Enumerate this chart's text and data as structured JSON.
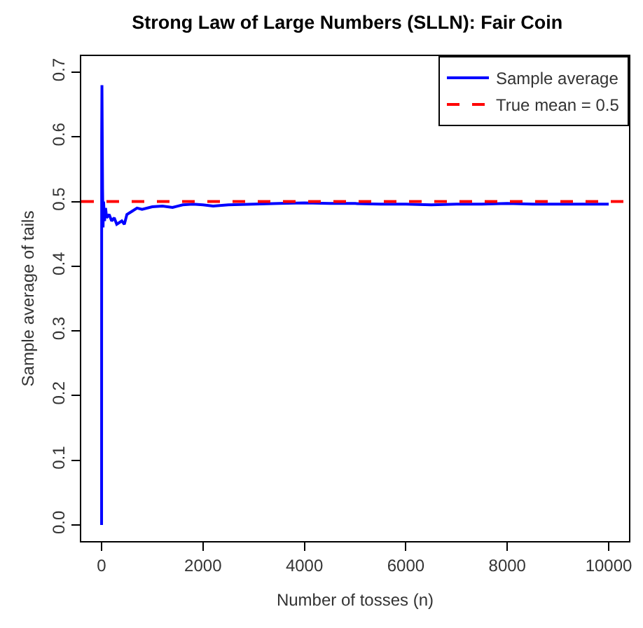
{
  "chart_data": {
    "type": "line",
    "title": "Strong Law of Large Numbers (SLLN): Fair Coin",
    "xlabel": "Number of tosses (n)",
    "ylabel": "Sample average of tails",
    "x": [
      1,
      3,
      8,
      20,
      30,
      40,
      60,
      80,
      100,
      150,
      200,
      250,
      300,
      400,
      450,
      500,
      600,
      700,
      800,
      1000,
      1200,
      1400,
      1600,
      1800,
      2000,
      2200,
      2500,
      3000,
      3500,
      4000,
      4500,
      5000,
      5500,
      6000,
      6500,
      7000,
      7500,
      8000,
      8500,
      9000,
      9500,
      10000
    ],
    "series": [
      {
        "name": "Sample average",
        "color": "#0000ff",
        "values": [
          0,
          0.6,
          0.68,
          0.52,
          0.46,
          0.5,
          0.47,
          0.49,
          0.475,
          0.48,
          0.47,
          0.475,
          0.465,
          0.47,
          0.465,
          0.48,
          0.485,
          0.49,
          0.488,
          0.492,
          0.493,
          0.491,
          0.495,
          0.496,
          0.495,
          0.493,
          0.495,
          0.496,
          0.497,
          0.498,
          0.497,
          0.497,
          0.496,
          0.496,
          0.495,
          0.496,
          0.496,
          0.497,
          0.496,
          0.496,
          0.496,
          0.496
        ],
        "line_style": "solid"
      }
    ],
    "ref_lines": [
      {
        "axis": "y",
        "value": 0.5,
        "label": "True mean = 0.5",
        "color": "#ff0000",
        "line_style": "dashed"
      }
    ],
    "xlim": [
      -400,
      10400
    ],
    "ylim": [
      -0.025,
      0.725
    ],
    "xticks": [
      0,
      2000,
      4000,
      6000,
      8000,
      10000
    ],
    "yticks": [
      {
        "value": 0,
        "label": "0.0"
      },
      0.1,
      0.2,
      0.3,
      0.4,
      0.5,
      0.6,
      0.7
    ],
    "grid": false,
    "legend": "top right"
  }
}
